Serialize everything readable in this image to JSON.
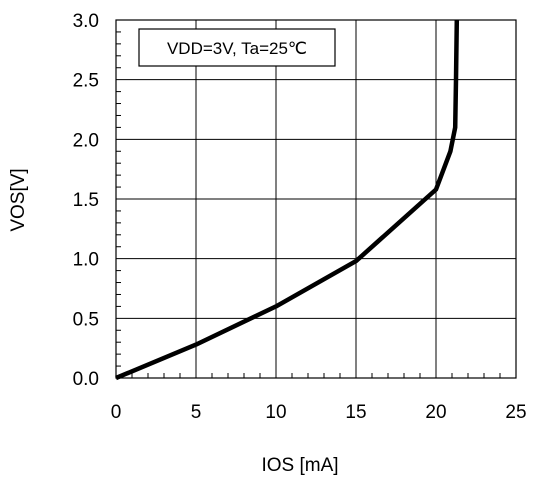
{
  "chart_data": {
    "type": "line",
    "xlabel": "IOS [mA]",
    "ylabel": "VOS[V]",
    "xlim": [
      0,
      25
    ],
    "ylim": [
      0,
      3.0
    ],
    "x_ticks": [
      "0",
      "5",
      "10",
      "15",
      "20",
      "25"
    ],
    "y_ticks": [
      "0.0",
      "0.5",
      "1.0",
      "1.5",
      "2.0",
      "2.5",
      "3.0"
    ],
    "grid": true,
    "annotation": "VDD=3V, Ta=25℃",
    "series": [
      {
        "x": [
          0,
          5,
          10,
          15,
          20,
          20.9,
          21.2,
          21.25,
          21.3
        ],
        "y": [
          0,
          0.28,
          0.6,
          0.98,
          1.58,
          1.9,
          2.1,
          2.5,
          3.0
        ]
      }
    ]
  }
}
